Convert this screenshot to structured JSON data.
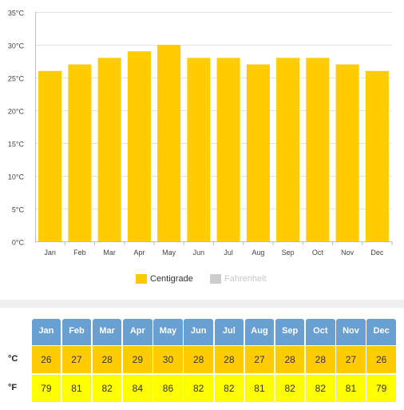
{
  "chart_data": {
    "type": "bar",
    "categories": [
      "Jan",
      "Feb",
      "Mar",
      "Apr",
      "May",
      "Jun",
      "Jul",
      "Aug",
      "Sep",
      "Oct",
      "Nov",
      "Dec"
    ],
    "series": [
      {
        "name": "Centigrade",
        "values": [
          26,
          27,
          28,
          29,
          30,
          28,
          28,
          27,
          28,
          28,
          27,
          26
        ],
        "color": "#ffcc00",
        "visible": true
      },
      {
        "name": "Fahrenheit",
        "values": [
          79,
          81,
          82,
          84,
          86,
          82,
          82,
          81,
          82,
          82,
          81,
          79
        ],
        "color": "#cccccc",
        "visible": false
      }
    ],
    "yticks": [
      "0°C",
      "5°C",
      "10°C",
      "15°C",
      "20°C",
      "25°C",
      "30°C",
      "35°C"
    ],
    "ylim": [
      0,
      35
    ],
    "grid": true,
    "legend": "bottom-center"
  },
  "table": {
    "months": [
      "Jan",
      "Feb",
      "Mar",
      "Apr",
      "May",
      "Jun",
      "Jul",
      "Aug",
      "Sep",
      "Oct",
      "Nov",
      "Dec"
    ],
    "celsius_label": "°C",
    "fahrenheit_label": "°F",
    "celsius": [
      "26",
      "27",
      "28",
      "29",
      "30",
      "28",
      "28",
      "27",
      "28",
      "28",
      "27",
      "26"
    ],
    "fahrenheit": [
      "79",
      "81",
      "82",
      "84",
      "86",
      "82",
      "82",
      "81",
      "82",
      "82",
      "81",
      "79"
    ],
    "header_color": "#6a9fd2",
    "celsius_color": "#ffcc00",
    "fahrenheit_color": "#ffff00"
  }
}
